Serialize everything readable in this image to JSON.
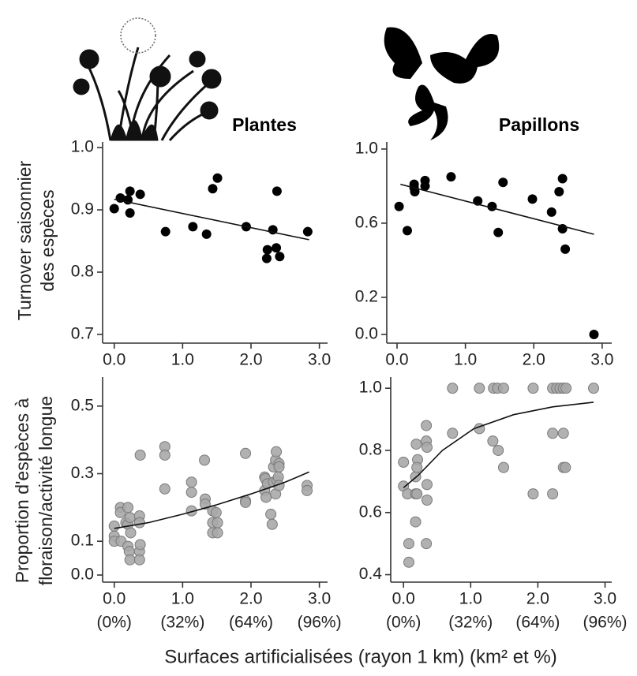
{
  "xlabel": "Surfaces artificialisées (rayon 1 km) (km² et %)",
  "chart_data": [
    {
      "type": "scatter",
      "title": "Plantes",
      "ylabel": [
        "Turnover saisonnier",
        "des espèces"
      ],
      "color": "#000000",
      "x": [
        0,
        0.09,
        0.2,
        0.23,
        0.23,
        0.38,
        0.75,
        1.15,
        1.35,
        1.44,
        1.51,
        1.93,
        2.23,
        2.24,
        2.32,
        2.37,
        2.38,
        2.42,
        2.83
      ],
      "values": [
        0.902,
        0.919,
        0.916,
        0.93,
        0.895,
        0.925,
        0.865,
        0.873,
        0.861,
        0.934,
        0.951,
        0.873,
        0.822,
        0.836,
        0.868,
        0.839,
        0.93,
        0.825,
        0.865
      ],
      "fit": {
        "x": [
          0,
          2.85
        ],
        "values": [
          0.917,
          0.852
        ]
      },
      "xlim": [
        -0.17,
        3.12
      ],
      "ylim": [
        0.686,
        1.009
      ],
      "xticks": [
        {
          "value": 0,
          "label": "0.0"
        },
        {
          "value": 1,
          "label": "1.0"
        },
        {
          "value": 2,
          "label": "2.0"
        },
        {
          "value": 3,
          "label": "3.0"
        }
      ],
      "yticks": [
        0.7,
        0.8,
        0.9,
        {
          "value": 1,
          "label": "1.0"
        }
      ]
    },
    {
      "type": "scatter",
      "title": "Papillons",
      "color": "#000000",
      "x": [
        0.03,
        0.15,
        0.25,
        0.25,
        0.26,
        0.41,
        0.41,
        0.79,
        1.18,
        1.39,
        1.48,
        1.55,
        1.98,
        2.26,
        2.37,
        2.42,
        2.42,
        2.46,
        2.88
      ],
      "values": [
        0.69,
        0.56,
        0.79,
        0.81,
        0.77,
        0.8,
        0.83,
        0.85,
        0.72,
        0.69,
        0.55,
        0.82,
        0.73,
        0.66,
        0.77,
        0.84,
        0.57,
        0.46,
        0.0
      ],
      "fit": {
        "x": [
          0.05,
          2.88
        ],
        "values": [
          0.81,
          0.54
        ]
      },
      "xlim": [
        -0.15,
        3.14
      ],
      "ylim": [
        -0.047,
        1.038
      ],
      "xticks": [
        {
          "value": 0,
          "label": "0.0"
        },
        {
          "value": 1,
          "label": "1.0"
        },
        {
          "value": 2,
          "label": "2.0"
        },
        {
          "value": 3,
          "label": "3.0"
        }
      ],
      "yticks": [
        {
          "value": 0,
          "label": "0.0"
        },
        0.2,
        0.6,
        {
          "value": 1,
          "label": "1.0"
        }
      ]
    },
    {
      "type": "scatter",
      "ylabel": [
        "Proportion d'espèces à",
        "floraison/activité longue"
      ],
      "color": "#a8a8a8",
      "x": [
        0,
        0,
        0,
        0.09,
        0.09,
        0.1,
        0.17,
        0.2,
        0.2,
        0.2,
        0.22,
        0.23,
        0.23,
        0.24,
        0.37,
        0.37,
        0.37,
        0.37,
        0.38,
        0.38,
        0.74,
        0.74,
        0.74,
        1.13,
        1.13,
        1.13,
        1.32,
        1.33,
        1.33,
        1.44,
        1.44,
        1.44,
        1.49,
        1.51,
        1.51,
        1.92,
        1.92,
        1.92,
        2.2,
        2.2,
        2.21,
        2.22,
        2.24,
        2.29,
        2.31,
        2.33,
        2.33,
        2.36,
        2.36,
        2.37,
        2.38,
        2.4,
        2.41,
        2.41,
        2.41,
        2.82,
        2.82
      ],
      "values": [
        0.145,
        0.115,
        0.1,
        0.2,
        0.185,
        0.1,
        0.155,
        0.15,
        0.085,
        0.2,
        0.07,
        0.045,
        0.17,
        0.125,
        0.175,
        0.155,
        0.07,
        0.045,
        0.355,
        0.09,
        0.38,
        0.355,
        0.255,
        0.275,
        0.245,
        0.19,
        0.34,
        0.225,
        0.21,
        0.19,
        0.155,
        0.125,
        0.185,
        0.155,
        0.125,
        0.36,
        0.22,
        0.215,
        0.29,
        0.25,
        0.285,
        0.23,
        0.27,
        0.18,
        0.15,
        0.32,
        0.275,
        0.34,
        0.24,
        0.365,
        0.28,
        0.29,
        0.33,
        0.32,
        0.265,
        0.265,
        0.25
      ],
      "fit": {
        "x": [
          0,
          0.5,
          1,
          1.5,
          2,
          2.5,
          2.85
        ],
        "values": [
          0.138,
          0.155,
          0.18,
          0.208,
          0.24,
          0.275,
          0.305
        ]
      },
      "xlim": [
        -0.17,
        3.12
      ],
      "ylim": [
        -0.021,
        0.586
      ],
      "xticks": [
        {
          "value": 0,
          "label": "0.0"
        },
        {
          "value": 1,
          "label": "1.0"
        },
        {
          "value": 2,
          "label": "2.0"
        },
        {
          "value": 3,
          "label": "3.0"
        }
      ],
      "xtick_percent_labels": [
        "(0%)",
        "(32%)",
        "(64%)",
        "(96%)"
      ],
      "yticks": [
        {
          "value": 0,
          "label": "0.0"
        },
        0.1,
        0.3,
        0.5
      ]
    },
    {
      "type": "scatter",
      "color": "#a8a8a8",
      "x": [
        0,
        0,
        0.06,
        0.08,
        0.08,
        0.18,
        0.18,
        0.18,
        0.19,
        0.2,
        0.21,
        0.2,
        0.34,
        0.34,
        0.35,
        0.35,
        0.35,
        0.34,
        0.73,
        0.73,
        1.13,
        1.13,
        1.34,
        1.33,
        1.4,
        1.41,
        1.49,
        1.49,
        1.93,
        1.93,
        2.22,
        2.22,
        2.22,
        2.28,
        2.33,
        2.38,
        2.38,
        2.38,
        2.41,
        2.42,
        2.83
      ],
      "values": [
        0.762,
        0.685,
        0.66,
        0.5,
        0.44,
        0.715,
        0.66,
        0.57,
        0.82,
        0.66,
        0.77,
        0.745,
        0.88,
        0.83,
        0.81,
        0.69,
        0.64,
        0.5,
        1.0,
        0.855,
        1.0,
        0.87,
        1.0,
        0.83,
        1.0,
        0.8,
        1.0,
        0.745,
        1.0,
        0.66,
        1.0,
        0.855,
        0.66,
        1.0,
        1.0,
        1.0,
        0.855,
        0.745,
        0.745,
        1.0,
        1.0
      ],
      "fit": {
        "x": [
          0,
          0.22,
          0.58,
          1.05,
          1.64,
          2.22,
          2.83
        ],
        "values": [
          0.68,
          0.72,
          0.8,
          0.87,
          0.915,
          0.94,
          0.955
        ]
      },
      "xlim": [
        -0.19,
        3.1
      ],
      "ylim": [
        0.376,
        1.036
      ],
      "xticks": [
        {
          "value": 0,
          "label": "0.0"
        },
        {
          "value": 1,
          "label": "1.0"
        },
        {
          "value": 2,
          "label": "2.0"
        },
        {
          "value": 3,
          "label": "3.0"
        }
      ],
      "xtick_percent_labels": [
        "(0%)",
        "(32%)",
        "(64%)",
        "(96%)"
      ],
      "yticks": [
        0.4,
        0.6,
        0.8,
        {
          "value": 1,
          "label": "1.0"
        }
      ]
    }
  ]
}
